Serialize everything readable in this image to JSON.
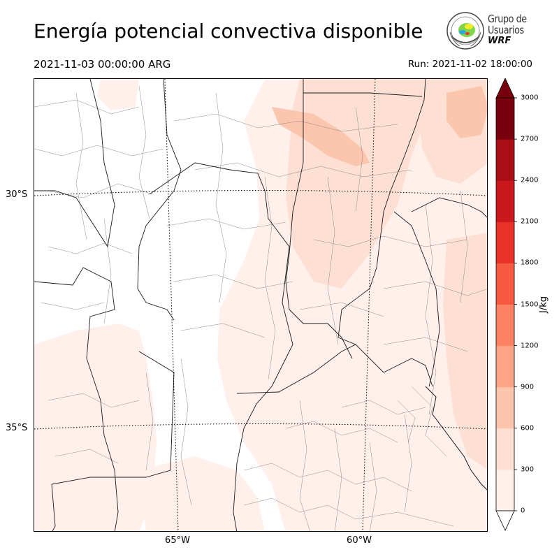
{
  "header": {
    "title": "Energía potencial convectiva disponible",
    "valid_time": "2021-11-03 00:00:00 ARG",
    "run_time": "Run: 2021-11-02 18:00:00"
  },
  "logo": {
    "line1": "Grupo de",
    "line2": "Usuarios",
    "line3": "WRF"
  },
  "map": {
    "lat_labels": [
      "30°S",
      "35°S"
    ],
    "lon_labels": [
      "65°W",
      "60°W"
    ],
    "colors": {
      "lowest": "#fff0eb",
      "low": "#fde0d3",
      "mid": "#fcc5ae",
      "border": "#1a1a1a",
      "county": "#8a8a8a"
    }
  },
  "colorbar": {
    "units": "J/kg",
    "ticks": [
      "0",
      "300",
      "600",
      "900",
      "1200",
      "1500",
      "1800",
      "2100",
      "2400",
      "2700",
      "3000"
    ],
    "colors": [
      "#fff0eb",
      "#fee0d2",
      "#fdc5ad",
      "#fca486",
      "#fb8262",
      "#f65a40",
      "#e83228",
      "#cb181d",
      "#a90f15",
      "#79000d"
    ]
  }
}
